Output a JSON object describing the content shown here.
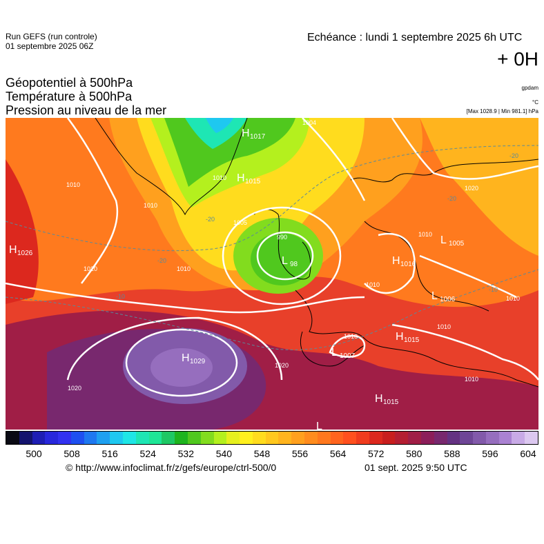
{
  "header": {
    "run_line1": "Run GEFS (run controle)",
    "run_line2": "01 septembre 2025 06Z",
    "echeance": "Echéance : lundi 1 septembre 2025 6h UTC",
    "offset": "+ 0H",
    "titles": [
      "Géopotentiel à 500hPa",
      "Température à 500hPa",
      "Pression au niveau de la mer"
    ],
    "unit_gpdam": "gpdam",
    "unit_c": "°C",
    "maxmin": "[Max 1028.9 | Min 981.1] hPa"
  },
  "map_labels": {
    "highs": [
      {
        "text": "H",
        "sub": "1017"
      },
      {
        "text": "H",
        "sub": "1015"
      },
      {
        "text": "H",
        "sub": "1026"
      },
      {
        "text": "H",
        "sub": "1016"
      },
      {
        "text": "H",
        "sub": "1015"
      },
      {
        "text": "H",
        "sub": "1029"
      },
      {
        "text": "H",
        "sub": "1015"
      }
    ],
    "lows": [
      {
        "text": "L",
        "sub": "98"
      },
      {
        "text": "L",
        "sub": "1005"
      },
      {
        "text": "L",
        "sub": "1006"
      },
      {
        "text": "L",
        "sub": "1007"
      },
      {
        "text": "L",
        "sub": ""
      }
    ],
    "isobars": [
      "1004",
      "1010",
      "1010",
      "1010",
      "1005",
      "990",
      "1010",
      "1020",
      "1010",
      "1010",
      "1020",
      "1020",
      "1010",
      "1010",
      "1010",
      "1010",
      "1020"
    ],
    "isotherms": [
      "-20",
      "-20",
      "-20",
      "-10",
      "-10",
      "-20"
    ]
  },
  "colorbar": {
    "colors": [
      "#0a0a14",
      "#14146e",
      "#1e1eb4",
      "#2828dc",
      "#3232f0",
      "#1e50f0",
      "#1e78f0",
      "#1ea0f0",
      "#1ec8f0",
      "#1ee6e6",
      "#1ee6b4",
      "#1ee696",
      "#1ec864",
      "#1eb41e",
      "#50c81e",
      "#82dc1e",
      "#b4f01e",
      "#e6f01e",
      "#fff01e",
      "#ffdc1e",
      "#ffc81e",
      "#ffb41e",
      "#ffa01e",
      "#ff8c1e",
      "#ff781e",
      "#ff641e",
      "#ff501e",
      "#f03c1e",
      "#dc281e",
      "#c81e1e",
      "#b41e32",
      "#a01e46",
      "#8c1e5a",
      "#78286e",
      "#643282",
      "#6e4696",
      "#825aaa",
      "#966ebe",
      "#aa82d2",
      "#c8aae6",
      "#dcc8f0"
    ],
    "ticks": [
      "500",
      "508",
      "516",
      "524",
      "532",
      "540",
      "548",
      "556",
      "564",
      "572",
      "580",
      "588",
      "596",
      "604"
    ]
  },
  "footer": {
    "url": "© http://www.infoclimat.fr/z/gefs/europe/ctrl-500/0",
    "timestamp": "01 sept. 2025  9:50 UTC"
  }
}
